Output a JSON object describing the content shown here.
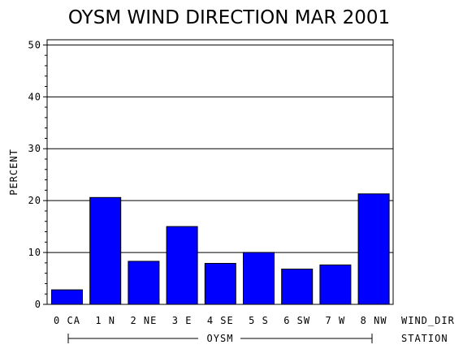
{
  "chart_data": {
    "type": "bar",
    "title": "OYSM WIND DIRECTION MAR 2001",
    "ylabel": "PERCENT",
    "xlabel": "WIND_DIR",
    "group_label_name": "STATION",
    "group_label": "OYSM",
    "categories": [
      "0 CA",
      "1 N",
      "2 NE",
      "3 E",
      "4 SE",
      "5 S",
      "6 SW",
      "7 W",
      "8 NW"
    ],
    "values": [
      2.8,
      20.6,
      8.3,
      15.0,
      7.9,
      10.0,
      6.8,
      7.6,
      21.3
    ],
    "ylim": [
      0,
      51
    ],
    "yticks": [
      0,
      10,
      20,
      30,
      40,
      50
    ],
    "grid": true,
    "bar_color": "#0000FF",
    "legend": "none"
  }
}
